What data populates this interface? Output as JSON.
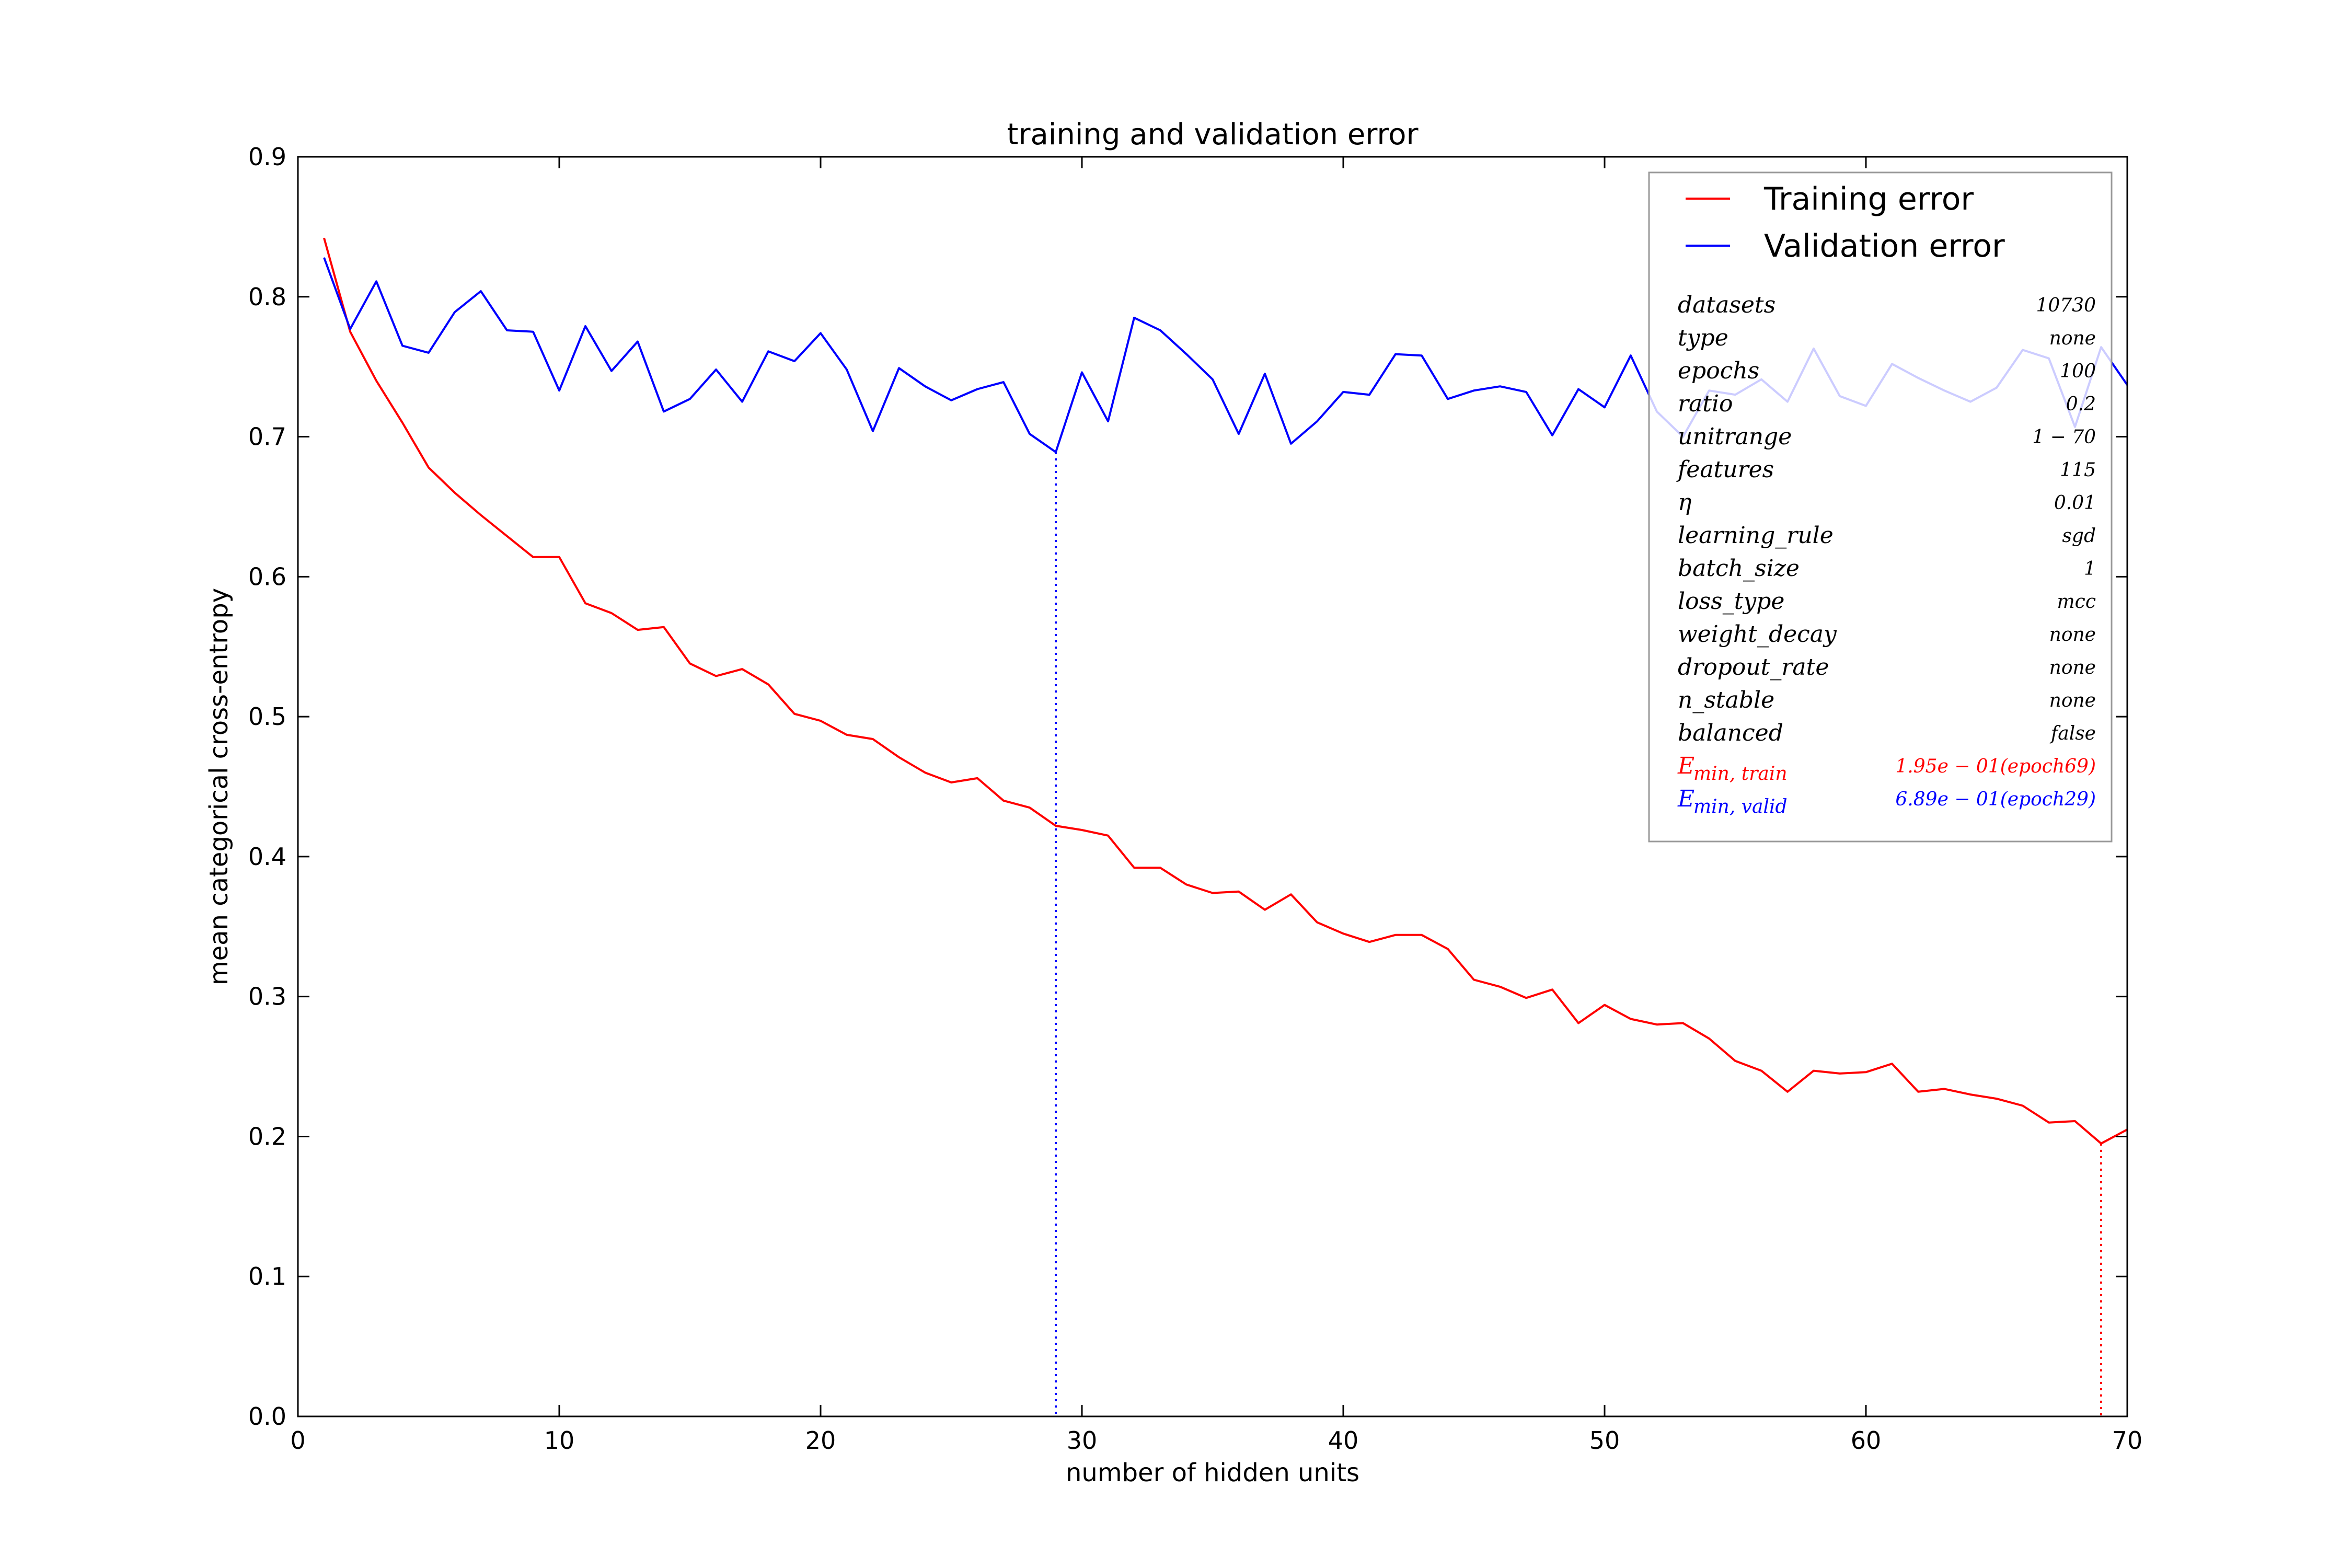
{
  "chart_data": {
    "type": "line",
    "title": "training and validation error",
    "xlabel": "number of hidden units",
    "ylabel": "mean categorical cross-entropy",
    "xlim": [
      0,
      70
    ],
    "ylim": [
      0,
      0.9
    ],
    "x_ticks": [
      "0",
      "10",
      "20",
      "30",
      "40",
      "50",
      "60",
      "70"
    ],
    "y_ticks": [
      "0.0",
      "0.1",
      "0.2",
      "0.3",
      "0.4",
      "0.5",
      "0.6",
      "0.7",
      "0.8",
      "0.9"
    ],
    "grid": false,
    "legend_position": "top-right",
    "x": [
      1,
      2,
      3,
      4,
      5,
      6,
      7,
      8,
      9,
      10,
      11,
      12,
      13,
      14,
      15,
      16,
      17,
      18,
      19,
      20,
      21,
      22,
      23,
      24,
      25,
      26,
      27,
      28,
      29,
      30,
      31,
      32,
      33,
      34,
      35,
      36,
      37,
      38,
      39,
      40,
      41,
      42,
      43,
      44,
      45,
      46,
      47,
      48,
      49,
      50,
      51,
      52,
      53,
      54,
      55,
      56,
      57,
      58,
      59,
      60,
      61,
      62,
      63,
      64,
      65,
      66,
      67,
      68,
      69,
      70
    ],
    "series": [
      {
        "name": "Training error",
        "color": "#ff0000",
        "values": [
          0.842,
          0.775,
          0.74,
          0.71,
          0.678,
          0.66,
          0.644,
          0.629,
          0.614,
          0.614,
          0.581,
          0.574,
          0.562,
          0.564,
          0.538,
          0.529,
          0.534,
          0.523,
          0.502,
          0.497,
          0.487,
          0.484,
          0.471,
          0.46,
          0.453,
          0.456,
          0.44,
          0.435,
          0.422,
          0.419,
          0.415,
          0.392,
          0.392,
          0.38,
          0.374,
          0.375,
          0.362,
          0.373,
          0.353,
          0.345,
          0.339,
          0.344,
          0.344,
          0.334,
          0.312,
          0.307,
          0.299,
          0.305,
          0.281,
          0.294,
          0.284,
          0.28,
          0.281,
          0.27,
          0.254,
          0.247,
          0.232,
          0.247,
          0.245,
          0.246,
          0.252,
          0.232,
          0.234,
          0.23,
          0.227,
          0.222,
          0.21,
          0.211,
          0.195,
          0.205
        ]
      },
      {
        "name": "Validation error",
        "color": "#0000ff",
        "values": [
          0.828,
          0.777,
          0.811,
          0.765,
          0.76,
          0.789,
          0.804,
          0.776,
          0.775,
          0.733,
          0.779,
          0.747,
          0.768,
          0.718,
          0.727,
          0.748,
          0.725,
          0.761,
          0.754,
          0.774,
          0.748,
          0.704,
          0.749,
          0.736,
          0.726,
          0.734,
          0.739,
          0.702,
          0.689,
          0.746,
          0.711,
          0.785,
          0.776,
          0.759,
          0.741,
          0.702,
          0.745,
          0.695,
          0.711,
          0.732,
          0.73,
          0.759,
          0.758,
          0.727,
          0.733,
          0.736,
          0.732,
          0.701,
          0.734,
          0.721,
          0.758,
          0.718,
          0.7,
          0.733,
          0.73,
          0.741,
          0.725,
          0.763,
          0.729,
          0.722,
          0.752,
          0.742,
          0.733,
          0.725,
          0.735,
          0.762,
          0.756,
          0.707,
          0.764,
          0.737
        ]
      }
    ],
    "markers": [
      {
        "x": 29,
        "y": 0.689,
        "color": "#0000ff",
        "style": "dotted"
      },
      {
        "x": 69,
        "y": 0.195,
        "color": "#ff0000",
        "style": "dotted"
      }
    ],
    "info_table": [
      {
        "key": "datasets",
        "value": "10730"
      },
      {
        "key": "type",
        "value": "none"
      },
      {
        "key": "epochs",
        "value": "100"
      },
      {
        "key": "ratio",
        "value": "0.2"
      },
      {
        "key": "unitrange",
        "value": "1 − 70"
      },
      {
        "key": "features",
        "value": "115"
      },
      {
        "key": "η",
        "value": "0.01"
      },
      {
        "key": "learning_rule",
        "value": "sgd"
      },
      {
        "key": "batch_size",
        "value": "1"
      },
      {
        "key": "loss_type",
        "value": "mcc"
      },
      {
        "key": "weight_decay",
        "value": "none"
      },
      {
        "key": "dropout_rate",
        "value": "none"
      },
      {
        "key": "n_stable",
        "value": "none"
      },
      {
        "key": "balanced",
        "value": "false"
      },
      {
        "key": "E",
        "key_sub": "min, train",
        "value": "1.95e − 01(epoch69)",
        "color": "#ff0000"
      },
      {
        "key": "E",
        "key_sub": "min, valid",
        "value": "6.89e − 01(epoch29)",
        "color": "#0000ff"
      }
    ]
  }
}
